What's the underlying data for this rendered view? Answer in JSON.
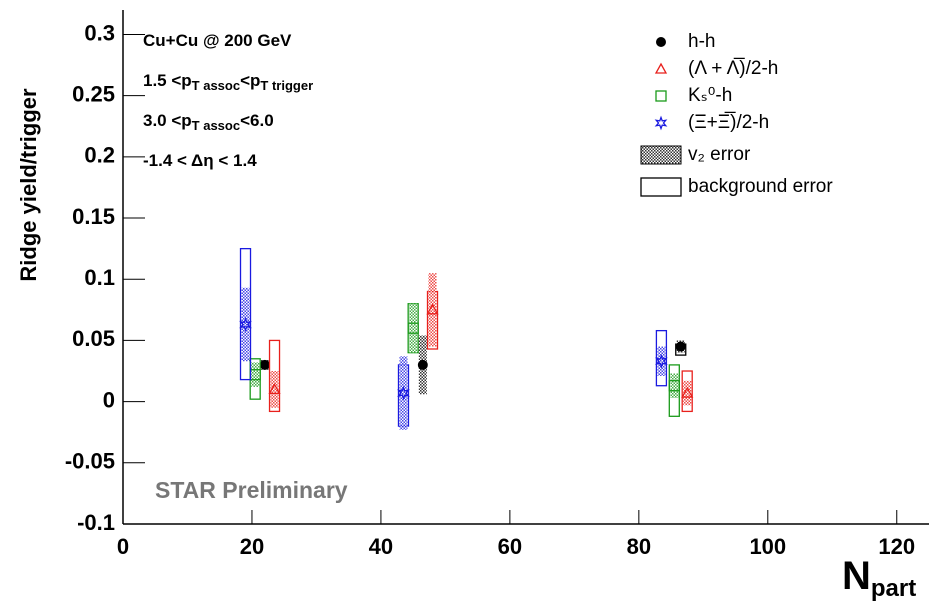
{
  "chart_data": {
    "type": "scatter",
    "y_label": "Ridge yield/trigger",
    "x_label": [
      {
        "t": "N"
      },
      {
        "t": "part",
        "sub": true
      }
    ],
    "watermark": "STAR Preliminary",
    "annotations": [
      [
        {
          "t": "Cu+Cu @ 200 GeV"
        }
      ],
      [
        {
          "t": "1.5 <p"
        },
        {
          "t": "T assoc",
          "sub": true
        },
        {
          "t": "<p"
        },
        {
          "t": "T trigger",
          "sub": true
        }
      ],
      [
        {
          "t": "3.0 <p"
        },
        {
          "t": "T assoc",
          "sub": true
        },
        {
          "t": "<6.0"
        }
      ],
      [
        {
          "t": "-1.4 < Δη < 1.4"
        }
      ]
    ],
    "xlim": [
      0,
      125
    ],
    "ylim": [
      -0.1,
      0.32
    ],
    "xticks": [
      0,
      20,
      40,
      60,
      80,
      100,
      120
    ],
    "yticks": [
      -0.1,
      -0.05,
      0,
      0.05,
      0.1,
      0.15,
      0.2,
      0.25,
      0.3
    ],
    "series": [
      {
        "name": "h-h",
        "color": "#000000",
        "marker": "circle",
        "x": [
          22,
          46.5,
          86.5
        ],
        "values": [
          0.03,
          0.03,
          0.045
        ],
        "v2_err": [
          0.004,
          0.024,
          0.005
        ],
        "bg_low": [
          null,
          null,
          0.038
        ],
        "bg_high": [
          null,
          null,
          0.047
        ]
      },
      {
        "name": "(Λ + Λ̅)/2-h",
        "color": "#e8201c",
        "marker": "triangle",
        "x": [
          23.5,
          48,
          87.5
        ],
        "values": [
          0.01,
          0.075,
          0.007
        ],
        "v2_err": [
          0.015,
          0.03,
          0.01
        ],
        "bg_low": [
          -0.008,
          0.043,
          -0.008
        ],
        "bg_high": [
          0.05,
          0.09,
          0.025
        ]
      },
      {
        "name": "Kₛ⁰-h",
        "color": "#1a9a1a",
        "marker": "square",
        "x": [
          20.5,
          45,
          85.5
        ],
        "values": [
          0.022,
          0.06,
          0.013
        ],
        "v2_err": [
          0.01,
          0.02,
          0.01
        ],
        "bg_low": [
          0.002,
          0.04,
          -0.012
        ],
        "bg_high": [
          0.035,
          0.08,
          0.03
        ]
      },
      {
        "name": "(Ξ+Ξ̅)/2-h",
        "color": "#1a1ae0",
        "marker": "star",
        "x": [
          19,
          43.5,
          83.5
        ],
        "values": [
          0.063,
          0.007,
          0.033
        ],
        "v2_err": [
          0.03,
          0.03,
          0.012
        ],
        "bg_low": [
          0.018,
          -0.02,
          0.013
        ],
        "bg_high": [
          0.125,
          0.03,
          0.058
        ]
      }
    ],
    "legend_extra": [
      "v₂ error",
      "background error"
    ]
  }
}
